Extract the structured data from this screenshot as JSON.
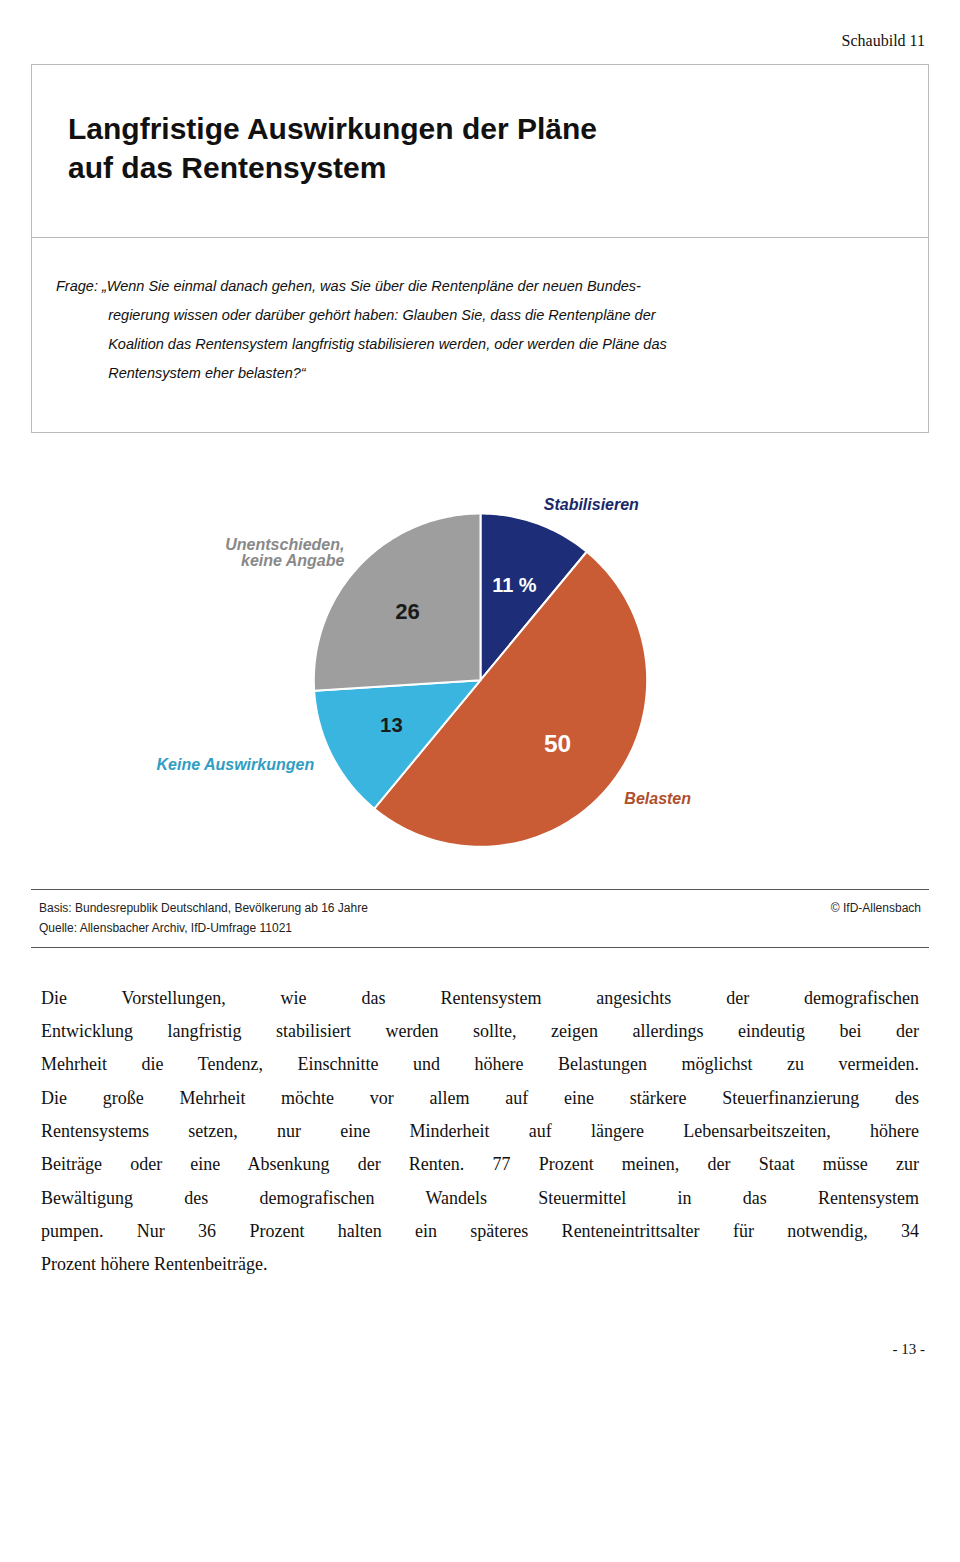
{
  "chart_data": {
    "type": "pie",
    "title": "Langfristige Auswirkungen der Pläne\nauf das Rentensystem",
    "subtitle": "Frage:  „Wenn Sie einmal danach gehen, was Sie über die Rentenpläne der neuen Bundes-\nregierung wissen oder darüber gehört haben: Glauben Sie, dass die Rentenpläne der\nKoalition das Rentensystem langfristig stabilisieren werden, oder werden die Pläne das\nRentensystem eher belasten?“",
    "categories": [
      "Stabilisieren",
      "Belasten",
      "Keine Auswirkungen",
      "Unentschieden,\nkeine Angabe"
    ],
    "values": [
      11,
      50,
      13,
      26
    ],
    "value_labels": [
      "11 %",
      "50",
      "13",
      "26"
    ],
    "colors": [
      "#1e2d78",
      "#c95b35",
      "#3ab5e0",
      "#9e9e9e"
    ],
    "data_labels": true,
    "annotations": [
      "Schaubild 11",
      "Basis: Bundesrepublik Deutschland, Bevölkerung ab 16 Jahre",
      "Quelle: Allensbacher Archiv, IfD-Umfrage 11021",
      "© IfD-Allensbach",
      "Die Vorstellungen, wie das Rentensystem angesichts der demografischen",
      "Entwicklung langfristig stabilisiert werden sollte, zeigen allerdings eindeutig bei der",
      "Mehrheit die Tendenz, Einschnitte und höhere Belastungen möglichst zu vermeiden.",
      "Die große Mehrheit möchte vor allem auf eine stärkere Steuerfinanzierung des",
      "Rentensystems setzen, nur eine Minderheit auf längere Lebensarbeitszeiten, höhere",
      "Beiträge oder eine Absenkung der Renten. 77 Prozent meinen, der Staat müsse zur",
      "Bewältigung des demografischen Wandels Steuermittel in das Rentensystem",
      "pumpen. Nur 36 Prozent halten ein späteres Renteneintrittsalter für notwendig, 34",
      "Prozent höhere Rentenbeiträge.",
      "- 13 -"
    ]
  }
}
